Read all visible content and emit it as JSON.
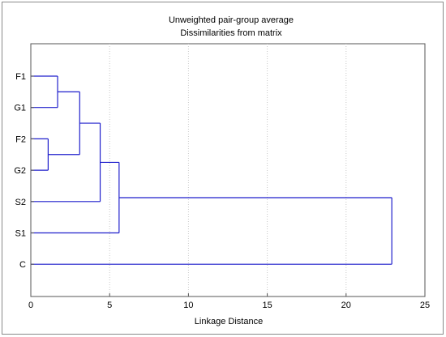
{
  "chart_data": {
    "type": "dendrogram",
    "title": "Unweighted pair-group average",
    "subtitle": "Dissimilarities from matrix",
    "xlabel": "Linkage Distance",
    "ylabel": "",
    "xlim": [
      0,
      25
    ],
    "x_ticks": [
      "0",
      "5",
      "10",
      "15",
      "20",
      "25"
    ],
    "grid": "vertical dotted",
    "line_color": "#1f1fcc",
    "leaves": [
      "F1",
      "G1",
      "F2",
      "G2",
      "S2",
      "S1",
      "C"
    ],
    "merges": [
      {
        "left": "F2",
        "right": "G2",
        "distance": 1.1
      },
      {
        "left": "F1",
        "right": "G1",
        "distance": 1.7
      },
      {
        "left": "F1,G1",
        "right": "F2,G2",
        "distance": 3.1
      },
      {
        "left": "F1,G1,F2,G2",
        "right": "S2",
        "distance": 4.4
      },
      {
        "left": "F1,G1,F2,G2,S2",
        "right": "S1",
        "distance": 5.6
      },
      {
        "left": "F1,G1,F2,G2,S2,S1",
        "right": "C",
        "distance": 22.9
      }
    ]
  }
}
